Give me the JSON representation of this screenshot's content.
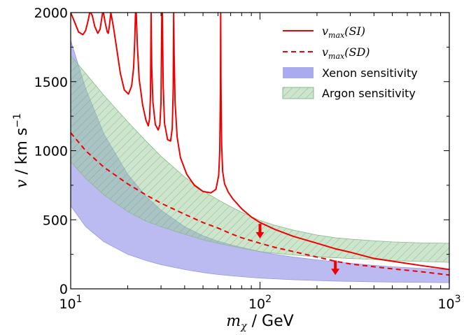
{
  "chart_data": {
    "type": "line",
    "xlabel": {
      "var": "m",
      "sub": "χ",
      "unit": " / GeV"
    },
    "ylabel": {
      "var": "v",
      "unit": " / km s",
      "sup": "−1"
    },
    "xscale": "log",
    "xlim": [
      10,
      1000
    ],
    "ylim": [
      0,
      2000
    ],
    "xticks": [
      {
        "value": 10,
        "base": "10",
        "exp": "1"
      },
      {
        "value": 100,
        "base": "10",
        "exp": "2"
      },
      {
        "value": 1000,
        "base": "10",
        "exp": "3"
      }
    ],
    "yticks": [
      0,
      500,
      1000,
      1500,
      2000
    ],
    "grid": false,
    "legend_position": "top-right",
    "legend": [
      {
        "label_var": "v",
        "label_sub": "max",
        "label_arg": "(SI)",
        "style": "solid-line",
        "color": "#ee0000"
      },
      {
        "label_var": "v",
        "label_sub": "max",
        "label_arg": "(SD)",
        "style": "dashed-line",
        "color": "#ee0000"
      },
      {
        "label": "Xenon sensitivity",
        "style": "patch",
        "color": "#aaaaee"
      },
      {
        "label": "Argon sensitivity",
        "style": "hatched-patch",
        "color": "#99cc99"
      }
    ],
    "series": [
      {
        "key": "vmax_si",
        "style": "solid",
        "color": "#ee0000",
        "x": [
          10.0,
          10.5,
          11.0,
          11.6,
          12.0,
          12.4,
          12.6,
          12.75,
          13.0,
          13.4,
          13.9,
          14.3,
          14.6,
          14.75,
          14.9,
          15.2,
          15.6,
          15.8,
          16.0,
          16.3,
          16.8,
          17.5,
          18.3,
          19.2,
          20.2,
          21.0,
          21.5,
          21.8,
          22.0,
          22.2,
          22.5,
          23.0,
          24.0,
          25.0,
          25.7,
          26.1,
          26.4,
          26.6,
          26.8,
          27.2,
          28.0,
          29.0,
          29.6,
          30.0,
          30.3,
          30.5,
          30.8,
          31.3,
          32.5,
          33.7,
          34.4,
          34.8,
          35.0,
          35.2,
          35.6,
          36.5,
          38.0,
          41.0,
          45.0,
          50.0,
          55.0,
          58.5,
          60.5,
          61.3,
          61.8,
          62.0,
          62.2,
          62.7,
          63.5,
          65.0,
          68.0,
          72.0,
          80.0,
          90.0,
          100.0,
          120.0,
          150.0,
          200.0,
          250.0,
          300.0,
          400.0,
          500.0,
          700.0,
          1000.0
        ],
        "y": [
          2000,
          1930,
          1860,
          1840,
          1870,
          1950,
          2000,
          2000,
          1980,
          1900,
          1850,
          1880,
          1960,
          2000,
          2000,
          1930,
          1860,
          1850,
          1900,
          2000,
          1900,
          1740,
          1560,
          1440,
          1410,
          1470,
          1600,
          1800,
          2000,
          2000,
          1760,
          1520,
          1330,
          1220,
          1180,
          1230,
          1400,
          2000,
          1600,
          1350,
          1190,
          1150,
          1190,
          1350,
          2000,
          2000,
          1480,
          1200,
          1080,
          1070,
          1160,
          1450,
          2000,
          1700,
          1350,
          1100,
          950,
          830,
          750,
          705,
          695,
          720,
          820,
          1000,
          1450,
          2000,
          1500,
          1050,
          850,
          760,
          700,
          650,
          580,
          520,
          480,
          430,
          380,
          330,
          290,
          265,
          220,
          200,
          170,
          140
        ]
      },
      {
        "key": "vmax_sd",
        "style": "dashed",
        "color": "#ee0000",
        "x": [
          10,
          12,
          15,
          20,
          25,
          30,
          40,
          50,
          60,
          70,
          80,
          100,
          120,
          150,
          200,
          250,
          300,
          400,
          500,
          700,
          1000
        ],
        "y": [
          1130,
          1000,
          880,
          760,
          680,
          620,
          540,
          480,
          440,
          400,
          370,
          330,
          300,
          270,
          230,
          200,
          180,
          160,
          145,
          125,
          100
        ]
      }
    ],
    "bands": [
      {
        "key": "xenon",
        "color": "#aaaaee",
        "x": [
          10,
          12,
          15,
          20,
          25,
          30,
          40,
          50,
          60,
          70,
          80,
          100,
          120,
          150,
          200,
          250,
          300,
          400,
          500,
          700,
          1000
        ],
        "upper": [
          1800,
          1450,
          1120,
          830,
          670,
          570,
          450,
          385,
          345,
          320,
          300,
          270,
          250,
          230,
          210,
          195,
          185,
          170,
          160,
          148,
          138
        ],
        "lower": [
          600,
          450,
          340,
          250,
          205,
          175,
          140,
          118,
          104,
          95,
          88,
          78,
          72,
          66,
          60,
          56,
          54,
          51,
          49,
          47,
          45
        ]
      },
      {
        "key": "argon",
        "color": "#99cc99",
        "x": [
          10,
          12,
          15,
          20,
          25,
          30,
          40,
          50,
          60,
          70,
          80,
          100,
          120,
          150,
          200,
          250,
          300,
          400,
          500,
          700,
          1000
        ],
        "upper": [
          1690,
          1560,
          1400,
          1210,
          1070,
          960,
          810,
          710,
          645,
          595,
          555,
          495,
          460,
          425,
          390,
          370,
          360,
          348,
          340,
          333,
          330
        ],
        "lower": [
          920,
          800,
          680,
          560,
          490,
          450,
          395,
          355,
          330,
          310,
          295,
          270,
          258,
          245,
          232,
          225,
          220,
          212,
          205,
          198,
          192
        ]
      }
    ],
    "annotations": [
      {
        "kind": "arrow-down",
        "x": 100,
        "y_from": 470,
        "y_to": 365,
        "color": "#ee0000"
      },
      {
        "kind": "arrow-down",
        "x": 250,
        "y_from": 205,
        "y_to": 100,
        "color": "#ee0000"
      }
    ]
  }
}
